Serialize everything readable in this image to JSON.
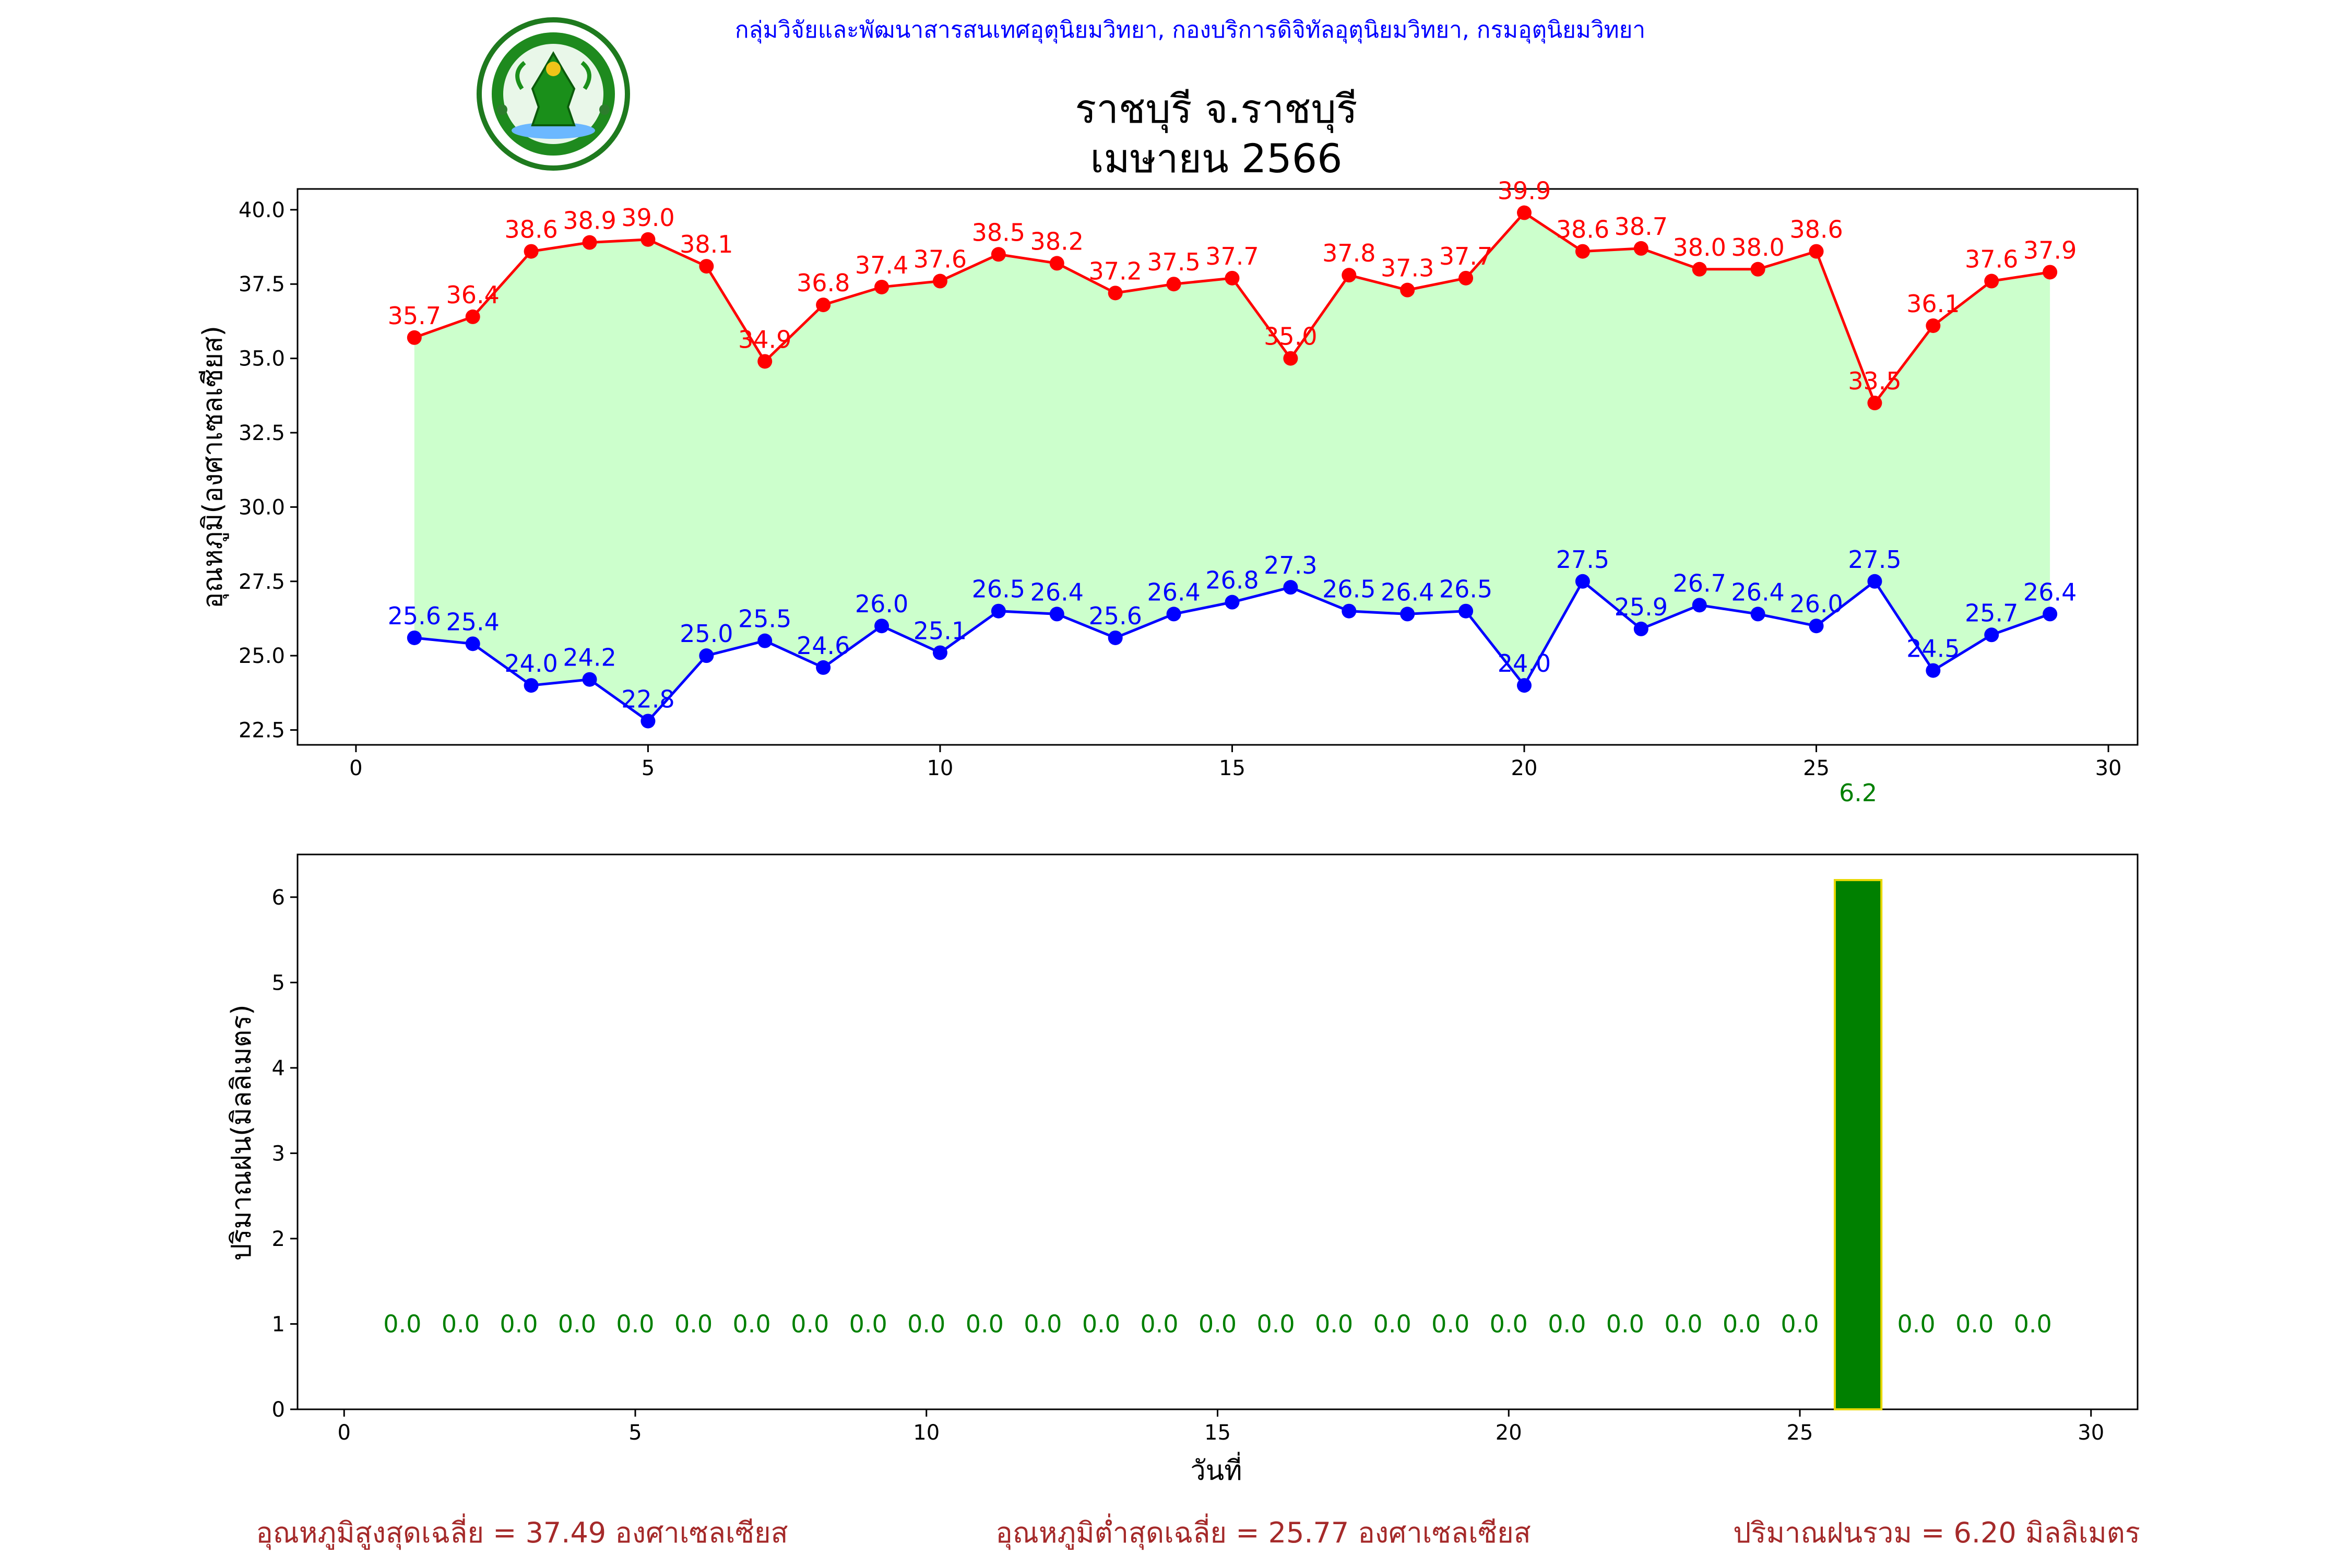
{
  "header": {
    "org_line": "กลุ่มวิจัยและพัฒนาสารสนเทศอุตุนิยมวิทยา, กองบริการดิจิทัลอุตุนิยมวิทยา, กรมอุตุนิยมวิทยา",
    "title": "ราชบุรี จ.ราชบุรี",
    "subtitle": "เมษายน 2566",
    "logo_text": "กรมอุตุนิยมวิทยา METEOROLOGICAL DEPARTMENT"
  },
  "colors": {
    "max_series": "#ff0000",
    "min_series": "#0000ff",
    "fill_between": "#ccffcc",
    "rain_bar": "#008000",
    "rain_bar_edge": "#e8d800",
    "rain_label": "#008000",
    "header_text": "#0000ff",
    "summary_text": "#a52a2a"
  },
  "chart_data": [
    {
      "type": "line",
      "title": "ราชบุรี จ.ราชบุรี เมษายน 2566",
      "xlabel": "",
      "ylabel": "อุณหภูมิ(องศาเซลเซียส)",
      "xlim": [
        -1,
        30.5
      ],
      "ylim": [
        22,
        40.7
      ],
      "xticks": [
        0,
        5,
        10,
        15,
        20,
        25,
        30
      ],
      "yticks": [
        "22.5",
        "25.0",
        "27.5",
        "30.0",
        "32.5",
        "35.0",
        "37.5",
        "40.0"
      ],
      "grid": false,
      "fill_between": true,
      "x": [
        1,
        2,
        3,
        4,
        5,
        6,
        7,
        8,
        9,
        10,
        11,
        12,
        13,
        14,
        15,
        16,
        17,
        18,
        19,
        20,
        21,
        22,
        23,
        24,
        25,
        26,
        27,
        28,
        29
      ],
      "series": [
        {
          "values": [
            35.7,
            36.4,
            38.6,
            38.9,
            39.0,
            38.1,
            34.9,
            36.8,
            37.4,
            37.6,
            38.5,
            38.2,
            37.2,
            37.5,
            37.7,
            35.0,
            37.8,
            37.3,
            37.7,
            39.9,
            38.6,
            38.7,
            38.0,
            38.0,
            38.6,
            33.5,
            36.1,
            37.6,
            37.9
          ]
        },
        {
          "values": [
            25.6,
            25.4,
            24.0,
            24.2,
            22.8,
            25.0,
            25.5,
            24.6,
            26.0,
            25.1,
            26.5,
            26.4,
            25.6,
            26.4,
            26.8,
            27.3,
            26.5,
            26.4,
            26.5,
            24.0,
            27.5,
            25.9,
            26.7,
            26.4,
            26.0,
            27.5,
            24.5,
            25.7,
            26.4
          ]
        }
      ]
    },
    {
      "type": "bar",
      "xlabel": "วันที่",
      "ylabel": "ปริมาณฝน(มิลลิเมตร)",
      "xlim": [
        -0.8,
        30.8
      ],
      "ylim": [
        0,
        6.5
      ],
      "xticks": [
        0,
        5,
        10,
        15,
        20,
        25,
        30
      ],
      "yticks": [
        0,
        1,
        2,
        3,
        4,
        5,
        6
      ],
      "grid": false,
      "x": [
        1,
        2,
        3,
        4,
        5,
        6,
        7,
        8,
        9,
        10,
        11,
        12,
        13,
        14,
        15,
        16,
        17,
        18,
        19,
        20,
        21,
        22,
        23,
        24,
        25,
        26,
        27,
        28,
        29
      ],
      "values": [
        0,
        0,
        0,
        0,
        0,
        0,
        0,
        0,
        0,
        0,
        0,
        0,
        0,
        0,
        0,
        0,
        0,
        0,
        0,
        0,
        0,
        0,
        0,
        0,
        0,
        6.2,
        0,
        0,
        0
      ]
    }
  ],
  "summary": {
    "avg_max": "อุณหภูมิสูงสุดเฉลี่ย = 37.49 องศาเซลเซียส",
    "avg_min": "อุณหภูมิต่ำสุดเฉลี่ย = 25.77 องศาเซลเซียส",
    "total_rain": "ปริมาณฝนรวม = 6.20 มิลลิเมตร"
  }
}
